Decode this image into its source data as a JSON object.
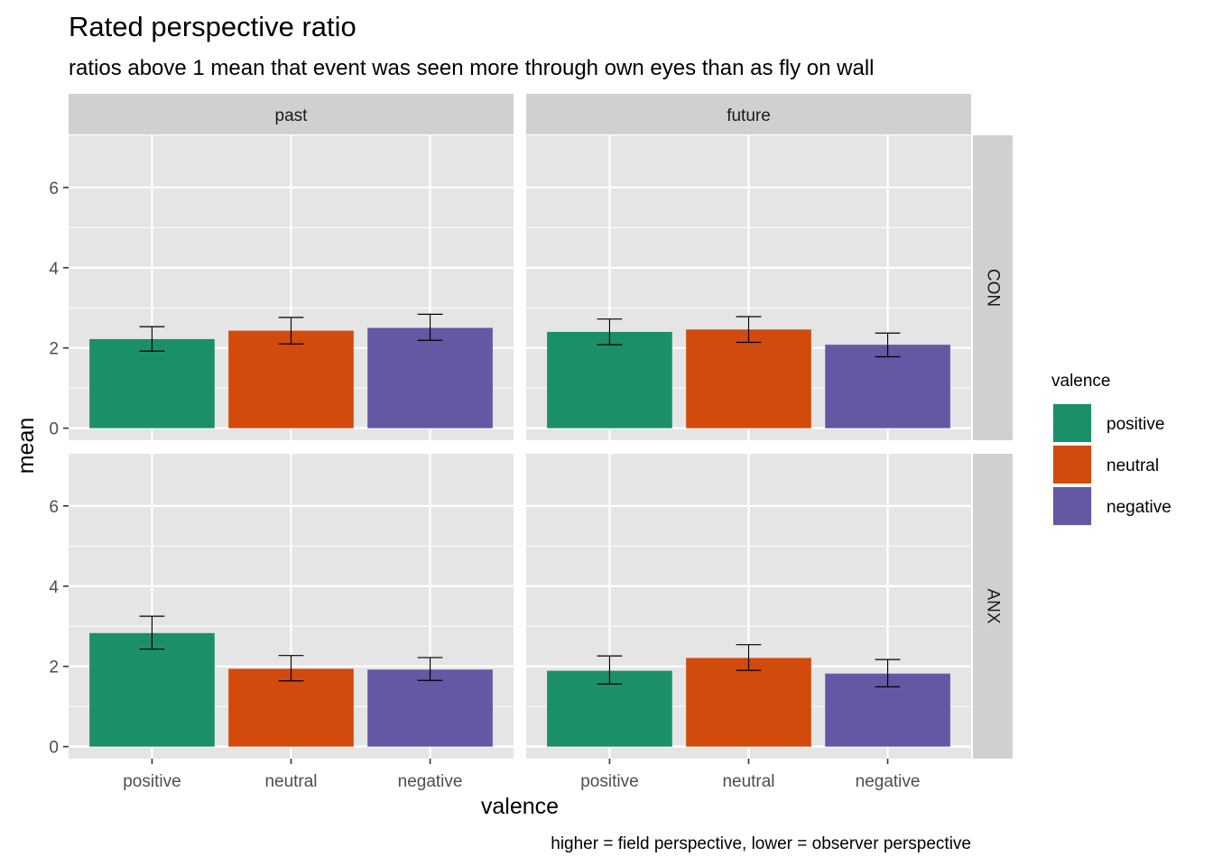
{
  "chart_data": {
    "type": "bar",
    "title": "Rated perspective ratio",
    "subtitle": "ratios above 1 mean that event was seen more through own eyes than as fly on wall",
    "caption": "higher = field perspective, lower = observer perspective",
    "xlabel": "valence",
    "ylabel": "mean",
    "ylim": [
      -0.3,
      7.3
    ],
    "yticks": [
      0,
      2,
      4,
      6
    ],
    "ytick_labels": [
      "0",
      "2",
      "4",
      "6"
    ],
    "categories": [
      "positive",
      "neutral",
      "negative"
    ],
    "facet_cols": [
      "past",
      "future"
    ],
    "facet_rows": [
      "CON",
      "ANX"
    ],
    "legend": {
      "title": "valence",
      "position": "right",
      "entries": [
        "positive",
        "neutral",
        "negative"
      ]
    },
    "colors": {
      "positive": "#1b9068",
      "neutral": "#d24b0c",
      "negative": "#6258a4",
      "panel_bg": "#e5e5e5",
      "strip_bg": "#d0d0d0",
      "grid": "#ffffff"
    },
    "grid": true,
    "panels": [
      {
        "row": "CON",
        "col": "past",
        "values": [
          2.22,
          2.43,
          2.5
        ],
        "error_low": [
          1.92,
          2.1,
          2.19
        ],
        "error_high": [
          2.53,
          2.76,
          2.84
        ]
      },
      {
        "row": "CON",
        "col": "future",
        "values": [
          2.4,
          2.46,
          2.08
        ],
        "error_low": [
          2.08,
          2.14,
          1.78
        ],
        "error_high": [
          2.72,
          2.78,
          2.37
        ]
      },
      {
        "row": "ANX",
        "col": "past",
        "values": [
          2.83,
          1.94,
          1.92
        ],
        "error_low": [
          2.43,
          1.64,
          1.65
        ],
        "error_high": [
          3.25,
          2.27,
          2.22
        ]
      },
      {
        "row": "ANX",
        "col": "future",
        "values": [
          1.89,
          2.21,
          1.82
        ],
        "error_low": [
          1.56,
          1.9,
          1.49
        ],
        "error_high": [
          2.26,
          2.54,
          2.17
        ]
      }
    ]
  }
}
